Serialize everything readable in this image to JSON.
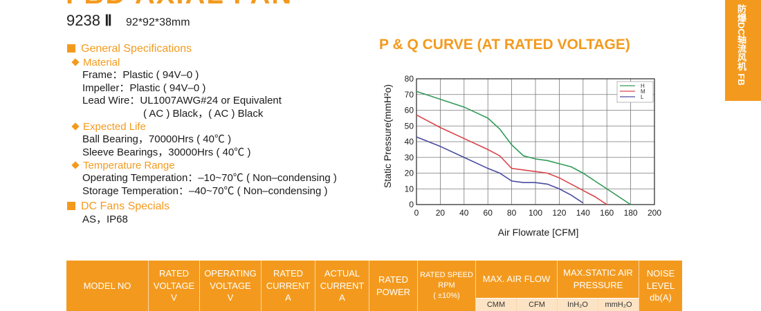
{
  "header": {
    "title": "FBD AXIAL FAN",
    "model": "9238",
    "model_suffix": "Ⅱ",
    "dimensions": "92*92*38mm"
  },
  "side_tab": {
    "text": "防爆DC轴流风机  FB"
  },
  "specs": {
    "general_title": "General Specifications",
    "material": {
      "title": "Material",
      "frame": "Frame：Plastic ( 94V–0 )",
      "impeller": "Impeller：Plastic ( 94V–0 )",
      "lead_wire": "Lead Wire：UL1007AWG#24 or Equivalent",
      "lead_wire_2": "( AC ) Black，( AC ) Black"
    },
    "life": {
      "title": "Expected Life",
      "ball": "Ball Bearing，70000Hrs ( 40℃ )",
      "sleeve": "Sleeve Bearings，30000Hrs ( 40℃ )"
    },
    "temperature": {
      "title": "Temperature Range",
      "operating": "Operating Temperation：–10~70℃ ( Non–condensing )",
      "storage": "Storage Temperation：–40~70℃ ( Non–condensing )"
    },
    "specials": {
      "title": "DC Fans Specials",
      "value": "AS，IP68"
    }
  },
  "chart_data": {
    "type": "line",
    "title": "P & Q CURVE (AT RATED VOLTAGE)",
    "xlabel": "Air  Flowrate  [CFM]",
    "ylabel": "Static Pressure(mmH²o)",
    "xlim": [
      0,
      200
    ],
    "ylim": [
      0,
      80
    ],
    "xticks": [
      "0",
      "20",
      "40",
      "60",
      "80",
      "100",
      "120",
      "140",
      "160",
      "180",
      "200"
    ],
    "yticks": [
      "0",
      "10",
      "20",
      "30",
      "40",
      "50",
      "60",
      "70",
      "80"
    ],
    "grid": true,
    "legend": "top-right",
    "series": [
      {
        "name": "H",
        "color": "#2e9a55",
        "x": [
          0,
          20,
          40,
          60,
          70,
          80,
          90,
          100,
          110,
          120,
          130,
          140,
          150,
          160,
          170,
          180
        ],
        "y": [
          72,
          67,
          62,
          55,
          48,
          38,
          31,
          29,
          28,
          26,
          24,
          20,
          15,
          10,
          5,
          0
        ]
      },
      {
        "name": "M",
        "color": "#d9434a",
        "x": [
          0,
          20,
          40,
          60,
          70,
          80,
          90,
          100,
          110,
          120,
          130,
          140,
          150,
          160
        ],
        "y": [
          57,
          49,
          42,
          35,
          31,
          23,
          22,
          21,
          20,
          17,
          13,
          9,
          5,
          0
        ]
      },
      {
        "name": "L",
        "color": "#4a4aa0",
        "x": [
          0,
          20,
          40,
          60,
          70,
          80,
          90,
          100,
          110,
          120,
          130,
          140
        ],
        "y": [
          43,
          37,
          30,
          23,
          20,
          15,
          14,
          14,
          13,
          10,
          6,
          1
        ]
      }
    ]
  },
  "table": {
    "headers": {
      "model": "MODEL NO",
      "rated_voltage": [
        "RATED",
        "VOLTAGE",
        "V"
      ],
      "operating_voltage": [
        "OPERATING",
        "VOLTAGE",
        "V"
      ],
      "rated_current": [
        "RATED",
        "CURRENT",
        "A"
      ],
      "actual_current": [
        "ACTUAL",
        "CURRENT",
        "A"
      ],
      "rated_power": [
        "RATED",
        "POWER"
      ],
      "rated_speed": [
        "RATED SPEED",
        "RPM",
        "( ±10%)"
      ],
      "air_flow": "MAX. AIR FLOW",
      "air_flow_cmm": "CMM",
      "air_flow_cfm": "CFM",
      "static_pressure": [
        "MAX.STATIC AIR",
        "PRESSURE"
      ],
      "inh2o": "InH₂O",
      "mmh2o": "mmH₂O",
      "noise": [
        "NOISE",
        "LEVEL",
        "db(A)"
      ]
    }
  }
}
